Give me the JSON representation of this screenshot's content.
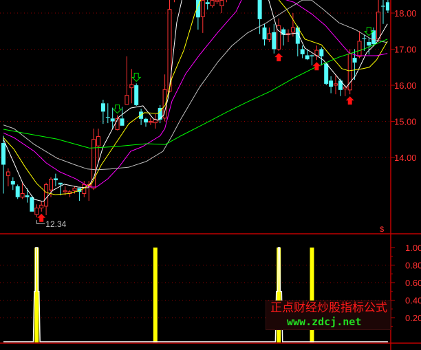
{
  "chart_data": [
    {
      "type": "candlestick",
      "panel": "price",
      "ylim": [
        12.0,
        18.36
      ],
      "grid": "dotted red horizontal",
      "y_ticks": [
        "18.00",
        "17.00",
        "16.00",
        "15.00",
        "14.00"
      ],
      "y_tick_values": [
        18,
        17,
        16,
        15,
        14
      ],
      "colors": {
        "up": "#FF3232",
        "down": "#54FCFC",
        "axis": "#C00000"
      },
      "candles_ohlc": [
        [
          14.4,
          14.6,
          13.0,
          13.8
        ],
        [
          13.5,
          13.7,
          13.2,
          13.6
        ],
        [
          13.35,
          13.45,
          13.1,
          13.25
        ],
        [
          13.2,
          13.25,
          12.85,
          12.9
        ],
        [
          12.9,
          13.3,
          12.85,
          13.0
        ],
        [
          12.95,
          13.15,
          12.75,
          12.9
        ],
        [
          12.9,
          12.95,
          12.5,
          12.5
        ],
        [
          12.42,
          12.7,
          12.34,
          12.6
        ],
        [
          12.6,
          12.8,
          12.5,
          12.68
        ],
        [
          12.65,
          13.3,
          12.4,
          13.25
        ],
        [
          13.1,
          13.45,
          12.9,
          13.4
        ],
        [
          13.42,
          13.55,
          13.2,
          13.37
        ],
        [
          13.3,
          13.3,
          12.95,
          13.25
        ],
        [
          13.05,
          13.2,
          12.95,
          13.08
        ],
        [
          13.0,
          13.1,
          12.9,
          13.05
        ],
        [
          13.08,
          13.2,
          13.0,
          13.15
        ],
        [
          13.15,
          13.15,
          12.8,
          13.05
        ],
        [
          13.0,
          13.35,
          12.9,
          13.25
        ],
        [
          13.2,
          13.35,
          12.8,
          13.25
        ],
        [
          13.15,
          14.8,
          13.1,
          14.5
        ],
        [
          14.32,
          14.8,
          13.9,
          14.58
        ],
        [
          15.5,
          15.6,
          14.93,
          15.27
        ],
        [
          15.12,
          15.5,
          14.95,
          15.1
        ],
        [
          15.08,
          15.38,
          14.78,
          15.0
        ],
        [
          14.77,
          15.17,
          14.75,
          15.08
        ],
        [
          15.08,
          15.4,
          14.88,
          14.88
        ],
        [
          15.47,
          16.8,
          15.47,
          15.72
        ],
        [
          15.93,
          16.45,
          15.5,
          16.02
        ],
        [
          16.0,
          16.05,
          15.43,
          15.45
        ],
        [
          15.27,
          15.35,
          14.9,
          15.07
        ],
        [
          15.07,
          15.1,
          14.85,
          14.97
        ],
        [
          14.97,
          15.1,
          14.9,
          15.0
        ],
        [
          14.96,
          15.2,
          14.8,
          15.05
        ],
        [
          15.37,
          15.45,
          14.95,
          15.05
        ],
        [
          15.09,
          16.3,
          15.0,
          15.88
        ],
        [
          15.83,
          18.5,
          15.8,
          18.1
        ],
        [
          18.5,
          19.1,
          18.3,
          18.9
        ],
        [
          18.9,
          19.4,
          18.7,
          19.2
        ],
        [
          19.2,
          19.5,
          18.8,
          19.0
        ],
        [
          19.0,
          19.2,
          18.6,
          18.8
        ],
        [
          18.8,
          19.0,
          18.5,
          18.6
        ],
        [
          18.6,
          18.7,
          17.54,
          17.88
        ],
        [
          17.9,
          18.4,
          17.45,
          18.35
        ],
        [
          18.3,
          18.4,
          18.1,
          18.25
        ],
        [
          18.2,
          18.5,
          18.15,
          18.35
        ],
        [
          18.32,
          18.5,
          18.25,
          18.36
        ],
        [
          18.2,
          18.5,
          18.0,
          18.35
        ],
        [
          18.4,
          18.9,
          18.3,
          18.7
        ],
        [
          18.7,
          19.1,
          18.5,
          18.9
        ],
        [
          18.9,
          19.3,
          18.7,
          19.1
        ],
        [
          19.1,
          19.4,
          18.8,
          18.9
        ],
        [
          18.9,
          19.2,
          18.6,
          18.8
        ],
        [
          18.8,
          19.0,
          18.5,
          18.7
        ],
        [
          18.7,
          18.9,
          18.45,
          18.6
        ],
        [
          18.5,
          18.6,
          17.42,
          17.83
        ],
        [
          17.6,
          17.7,
          17.1,
          17.27
        ],
        [
          17.27,
          17.6,
          17.2,
          17.43
        ],
        [
          17.47,
          17.7,
          16.88,
          17.0
        ],
        [
          17.0,
          17.85,
          16.95,
          17.65
        ],
        [
          17.55,
          17.6,
          17.1,
          17.4
        ],
        [
          17.4,
          17.55,
          17.2,
          17.43
        ],
        [
          17.47,
          18.0,
          17.35,
          17.6
        ],
        [
          17.6,
          17.65,
          16.8,
          17.15
        ],
        [
          17.0,
          17.1,
          16.75,
          16.86
        ],
        [
          16.83,
          17.0,
          16.7,
          16.72
        ],
        [
          16.83,
          16.85,
          16.55,
          16.8
        ],
        [
          16.82,
          17.1,
          16.7,
          16.97
        ],
        [
          17.0,
          17.05,
          16.55,
          16.8
        ],
        [
          16.6,
          16.62,
          16.0,
          16.04
        ],
        [
          16.13,
          16.25,
          15.78,
          15.96
        ],
        [
          16.0,
          16.3,
          15.75,
          16.04
        ],
        [
          16.13,
          16.18,
          15.7,
          15.87
        ],
        [
          15.9,
          16.0,
          15.7,
          15.95
        ],
        [
          15.87,
          17.0,
          15.75,
          16.87
        ],
        [
          16.76,
          17.0,
          16.15,
          16.63
        ],
        [
          16.8,
          17.5,
          16.75,
          17.22
        ],
        [
          17.3,
          17.4,
          16.95,
          17.28
        ],
        [
          17.2,
          17.32,
          16.85,
          17.1
        ],
        [
          17.52,
          17.6,
          17.1,
          17.14
        ],
        [
          17.28,
          18.4,
          17.2,
          18.03
        ],
        [
          18.2,
          18.4,
          17.7,
          18.18
        ],
        [
          18.3,
          18.36,
          18.0,
          18.07
        ]
      ],
      "moving_averages": [
        {
          "color": "#FFFFFF",
          "points": [
            [
              0,
              14.5
            ],
            [
              2.2,
              13.85
            ],
            [
              4.1,
              13.28
            ],
            [
              6.5,
              12.84
            ],
            [
              8.4,
              12.78
            ],
            [
              10.4,
              13.09
            ],
            [
              12.8,
              13.26
            ],
            [
              15.7,
              13.18
            ],
            [
              17.8,
              13.16
            ],
            [
              19.1,
              13.47
            ],
            [
              21,
              14.3
            ],
            [
              24.3,
              15.12
            ],
            [
              26.8,
              15.37
            ],
            [
              29.4,
              15.43
            ],
            [
              31.6,
              15.07
            ],
            [
              32.6,
              15.03
            ],
            [
              33.8,
              15.18
            ],
            [
              34.8,
              15.7
            ],
            [
              36.5,
              17.73
            ],
            [
              38,
              18.6
            ],
            [
              45,
              19.8
            ],
            [
              54,
              19.0
            ],
            [
              55.8,
              18.4
            ],
            [
              57.7,
              17.54
            ],
            [
              59.1,
              17.4
            ],
            [
              62,
              17.45
            ],
            [
              63.5,
              17.03
            ],
            [
              67.4,
              16.7
            ],
            [
              72.2,
              15.94
            ],
            [
              74.2,
              16.27
            ],
            [
              76.5,
              16.9
            ],
            [
              78.5,
              17.16
            ],
            [
              80.9,
              17.7
            ]
          ]
        },
        {
          "color": "#FFFF00",
          "points": [
            [
              0,
              14.55
            ],
            [
              2.2,
              14.23
            ],
            [
              4.6,
              13.73
            ],
            [
              7,
              13.28
            ],
            [
              9,
              13.03
            ],
            [
              10.9,
              12.97
            ],
            [
              13.8,
              13.0
            ],
            [
              16.2,
              13.09
            ],
            [
              18.6,
              13.28
            ],
            [
              20.6,
              13.79
            ],
            [
              23.5,
              14.36
            ],
            [
              26.4,
              14.93
            ],
            [
              27.8,
              15.07
            ],
            [
              29.7,
              15.24
            ],
            [
              32.6,
              15.22
            ],
            [
              34.1,
              15.45
            ],
            [
              35.5,
              16.2
            ],
            [
              38,
              16.97
            ],
            [
              40.3,
              17.98
            ],
            [
              42,
              18.5
            ],
            [
              50,
              19.3
            ],
            [
              56.5,
              18.6
            ],
            [
              59.7,
              18.1
            ],
            [
              63.5,
              17.28
            ],
            [
              67,
              17.12
            ],
            [
              68.8,
              16.84
            ],
            [
              71.3,
              16.46
            ],
            [
              72.8,
              16.4
            ],
            [
              75.7,
              16.46
            ],
            [
              77.1,
              16.5
            ],
            [
              78.6,
              16.7
            ],
            [
              80.9,
              17.22
            ]
          ]
        },
        {
          "color": "#FF00FF",
          "points": [
            [
              0,
              14.68
            ],
            [
              2.2,
              14.55
            ],
            [
              6.5,
              14.17
            ],
            [
              9,
              13.85
            ],
            [
              11.9,
              13.6
            ],
            [
              15.2,
              13.41
            ],
            [
              18.1,
              13.18
            ],
            [
              19.6,
              13.18
            ],
            [
              22,
              13.41
            ],
            [
              24.3,
              13.73
            ],
            [
              26.8,
              14.17
            ],
            [
              29.3,
              14.3
            ],
            [
              33,
              14.6
            ],
            [
              34,
              14.8
            ],
            [
              35.5,
              15.56
            ],
            [
              38.4,
              16.32
            ],
            [
              41.3,
              16.84
            ],
            [
              45.2,
              17.47
            ],
            [
              49,
              18.04
            ],
            [
              51,
              18.6
            ],
            [
              55,
              18.9
            ],
            [
              58.7,
              18.4
            ],
            [
              61.2,
              18.3
            ],
            [
              64.9,
              17.98
            ],
            [
              67.8,
              17.66
            ],
            [
              70.7,
              17.22
            ],
            [
              72.8,
              16.9
            ],
            [
              74.6,
              16.82
            ],
            [
              78.6,
              16.82
            ],
            [
              80.9,
              16.88
            ]
          ]
        },
        {
          "color": "#C0C0C0",
          "points": [
            [
              0,
              14.9
            ],
            [
              2.2,
              14.8
            ],
            [
              6.5,
              14.36
            ],
            [
              11.3,
              13.98
            ],
            [
              15.2,
              13.79
            ],
            [
              17.7,
              13.68
            ],
            [
              19.6,
              13.66
            ],
            [
              22.5,
              13.68
            ],
            [
              26.4,
              13.73
            ],
            [
              30.1,
              13.89
            ],
            [
              33.6,
              14.17
            ],
            [
              35.5,
              14.6
            ],
            [
              37.4,
              15.07
            ],
            [
              41.3,
              15.94
            ],
            [
              45.2,
              16.65
            ],
            [
              48.1,
              17.09
            ],
            [
              51.4,
              17.45
            ],
            [
              55.4,
              17.73
            ],
            [
              59.7,
              18.1
            ],
            [
              63,
              18.36
            ],
            [
              64.9,
              18.36
            ],
            [
              67.4,
              18.1
            ],
            [
              70.7,
              17.73
            ],
            [
              74.2,
              17.54
            ],
            [
              77.5,
              17.28
            ],
            [
              80.9,
              17.18
            ]
          ]
        },
        {
          "color": "#00FF00",
          "points": [
            [
              0,
              14.78
            ],
            [
              4.1,
              14.68
            ],
            [
              11.3,
              14.51
            ],
            [
              18.1,
              14.26
            ],
            [
              23.5,
              14.3
            ],
            [
              30.1,
              14.38
            ],
            [
              34.1,
              14.36
            ],
            [
              37.4,
              14.6
            ],
            [
              42.3,
              14.93
            ],
            [
              47.1,
              15.26
            ],
            [
              51.4,
              15.54
            ],
            [
              56.2,
              15.83
            ],
            [
              61.2,
              16.2
            ],
            [
              65.9,
              16.51
            ],
            [
              70.7,
              16.78
            ],
            [
              75.7,
              16.99
            ],
            [
              80.9,
              17.28
            ]
          ]
        }
      ],
      "buy_arrows_red_up": [
        8,
        58,
        66,
        73
      ],
      "sell_arrows_green_down": [
        24,
        28,
        77
      ],
      "low_marker": {
        "candle": 7,
        "label": "12.34"
      },
      "corner_marker": "$"
    },
    {
      "type": "bar",
      "panel": "indicator",
      "ylim": [
        0,
        1.0
      ],
      "y_ticks": [
        "1.00",
        "0.80",
        "0.60",
        "0.40",
        "0.20"
      ],
      "y_tick_values": [
        1.0,
        0.8,
        0.6,
        0.4,
        0.2
      ],
      "bars": {
        "color": "#FFFF00",
        "candles": [
          7,
          32,
          58,
          65
        ],
        "value": 1.0
      },
      "signal_line": {
        "color": "#FFFFFF",
        "points": [
          [
            0,
            0
          ],
          [
            6.3,
            0
          ],
          [
            6.5,
            0.5
          ],
          [
            6.7,
            0.5
          ],
          [
            6.8,
            1
          ],
          [
            7.2,
            1
          ],
          [
            7.3,
            0.5
          ],
          [
            7.5,
            0.5
          ],
          [
            7.7,
            0
          ],
          [
            57.3,
            0
          ],
          [
            57.5,
            0.5
          ],
          [
            57.8,
            0.5
          ],
          [
            57.9,
            1
          ],
          [
            58.2,
            1
          ],
          [
            58.3,
            0.5
          ],
          [
            58.6,
            0.5
          ],
          [
            58.8,
            0
          ],
          [
            81,
            0
          ]
        ]
      }
    }
  ],
  "watermark": {
    "title": "正点财经炒股指标公式",
    "url": "www.zdcj.net"
  }
}
